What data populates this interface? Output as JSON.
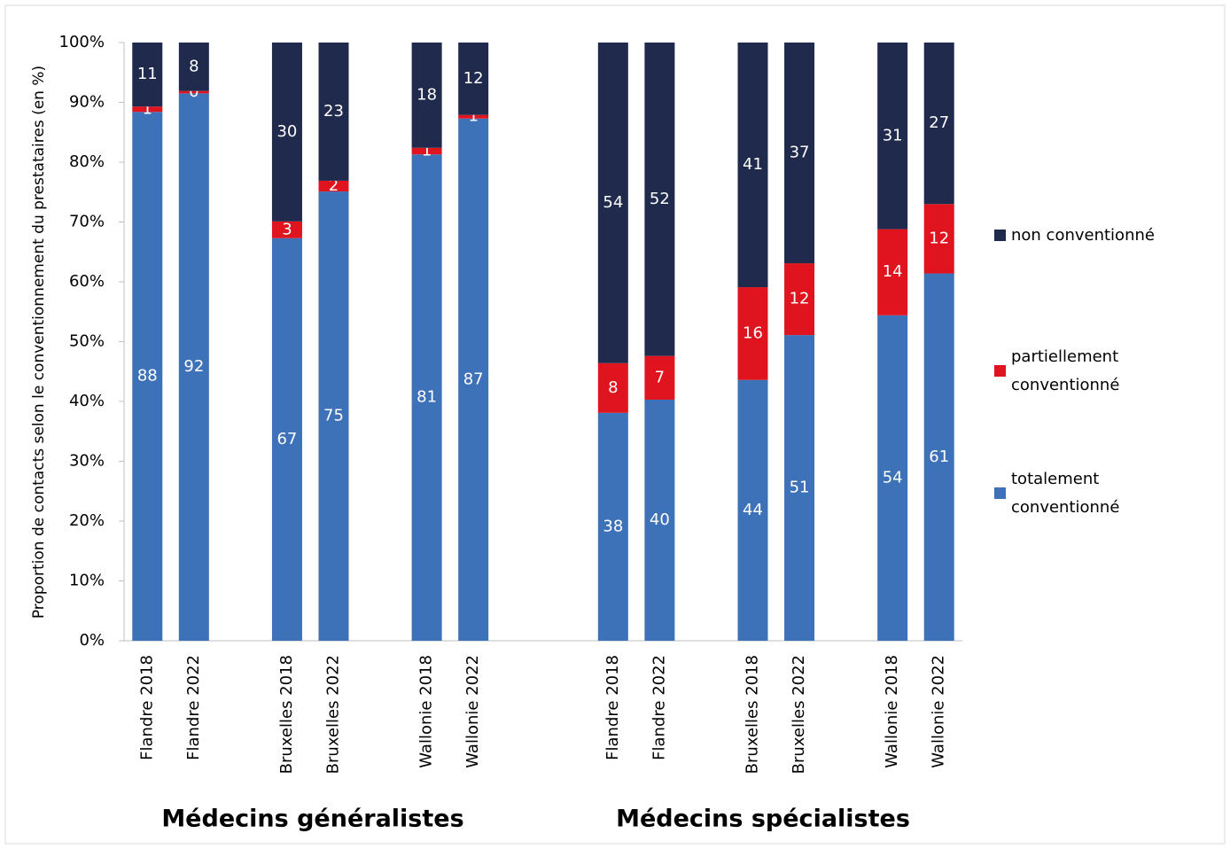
{
  "chart_data": {
    "type": "stacked_bar",
    "y_axis_label": "Proportion de contacts selon le conventionnement du prestataires (en %)",
    "categories": [
      "Flandre 2018",
      "Flandre 2022",
      null,
      "Bruxelles 2018",
      "Bruxelles 2022",
      null,
      "Wallonie 2018",
      "Wallonie 2022",
      null,
      null,
      "Flandre 2018",
      "Flandre 2022",
      null,
      "Bruxelles 2018",
      "Bruxelles 2022",
      null,
      "Wallonie 2018",
      "Wallonie 2022"
    ],
    "group_labels": [
      "Médecins généralistes",
      "Médecins spécialistes"
    ],
    "series": [
      {
        "name": "totalement conventionné",
        "color": "#3e72b8",
        "values": [
          88.4,
          91.5,
          null,
          67.3,
          75.1,
          null,
          81.3,
          87.3,
          null,
          null,
          38.1,
          40.3,
          null,
          43.6,
          51.1,
          null,
          54.4,
          61.4
        ],
        "value_labels": [
          "88",
          "92",
          null,
          "67",
          "75",
          null,
          "81",
          "87",
          null,
          null,
          "38",
          "40",
          null,
          "44",
          "51",
          null,
          "54",
          "61"
        ]
      },
      {
        "name": "partiellement conventionné",
        "color": "#e0141e",
        "values": [
          0.9,
          0.4,
          null,
          2.8,
          1.8,
          null,
          1.1,
          0.6,
          null,
          null,
          8.3,
          7.3,
          null,
          15.5,
          12.0,
          null,
          14.4,
          11.6
        ],
        "value_labels": [
          "1",
          "0",
          null,
          "3",
          "2",
          null,
          "1",
          "1",
          null,
          null,
          "8",
          "7",
          null,
          "16",
          "12",
          null,
          "14",
          "12"
        ]
      },
      {
        "name": "non conventionné",
        "color": "#1f2a4d",
        "values": [
          10.7,
          8.1,
          null,
          29.9,
          23.1,
          null,
          17.6,
          12.1,
          null,
          null,
          53.6,
          52.4,
          null,
          40.9,
          36.9,
          null,
          31.2,
          27.0
        ],
        "value_labels": [
          "11",
          "8",
          null,
          "30",
          "23",
          null,
          "18",
          "12",
          null,
          null,
          "54",
          "52",
          null,
          "41",
          "37",
          null,
          "31",
          "27"
        ]
      }
    ],
    "ylim": [
      0,
      100
    ],
    "yticks": [
      {
        "value": 0,
        "label": "0%"
      },
      {
        "value": 10,
        "label": "10%"
      },
      {
        "value": 20,
        "label": "20%"
      },
      {
        "value": 30,
        "label": "30%"
      },
      {
        "value": 40,
        "label": "40%"
      },
      {
        "value": 50,
        "label": "50%"
      },
      {
        "value": 60,
        "label": "60%"
      },
      {
        "value": 70,
        "label": "70%"
      },
      {
        "value": 80,
        "label": "80%"
      },
      {
        "value": 90,
        "label": "90%"
      },
      {
        "value": 100,
        "label": "100%"
      }
    ],
    "legend": "right"
  }
}
